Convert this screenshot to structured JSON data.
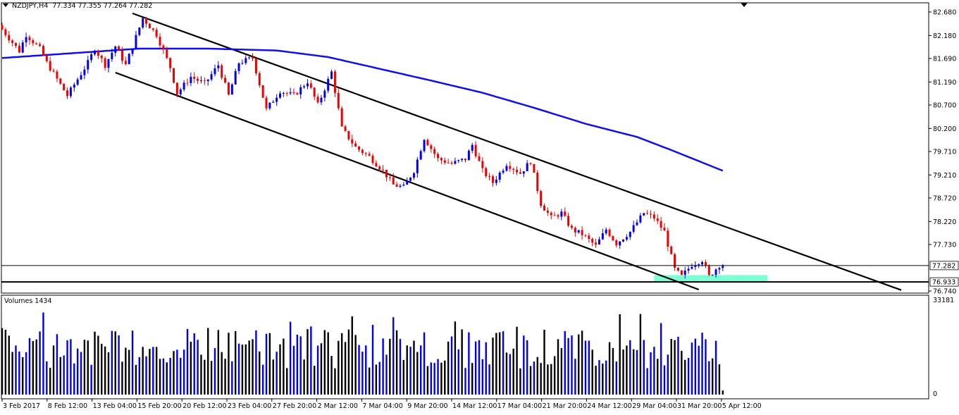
{
  "header": {
    "symbol": "NZDJPY,H4",
    "ohlc": "77.334 77.355 77.264 77.282"
  },
  "volumes_label": "Volumes 1434",
  "colors": {
    "bull": "#0000ee",
    "bear": "#ee0000",
    "ma": "#1010ee",
    "channel": "#000000",
    "support_zone": "#7fffd4",
    "volume_up": "#0000ee",
    "volume_down": "#000000"
  },
  "chart_data": {
    "type": "candlestick",
    "price_axis": {
      "ticks": [
        "82.680",
        "82.180",
        "81.690",
        "81.190",
        "80.700",
        "80.200",
        "79.710",
        "79.210",
        "78.720",
        "78.220",
        "77.730",
        "76.740"
      ],
      "ylim": [
        76.74,
        82.68
      ],
      "current_price": "77.282",
      "level_price": "76.933"
    },
    "volume_axis": {
      "ticks": [
        "33181",
        "0"
      ],
      "ylim": [
        0,
        33181
      ]
    },
    "x_ticks": [
      "3 Feb 2017",
      "8 Feb 12:00",
      "13 Feb 04:00",
      "15 Feb 20:00",
      "20 Feb 12:00",
      "23 Feb 04:00",
      "27 Feb 20:00",
      "2 Mar 12:00",
      "7 Mar 04:00",
      "9 Mar 20:00",
      "14 Mar 12:00",
      "17 Mar 04:00",
      "21 Mar 20:00",
      "24 Mar 12:00",
      "29 Mar 04:00",
      "31 Mar 20:00",
      "5 Apr 12:00"
    ],
    "price_path": [
      [
        0,
        82.4
      ],
      [
        6,
        81.85
      ],
      [
        8,
        82.2
      ],
      [
        12,
        81.9
      ],
      [
        14,
        81.6
      ],
      [
        20,
        80.9
      ],
      [
        26,
        81.6
      ],
      [
        28,
        81.9
      ],
      [
        31,
        81.55
      ],
      [
        34,
        81.95
      ],
      [
        37,
        81.55
      ],
      [
        42,
        82.55
      ],
      [
        46,
        82.2
      ],
      [
        50,
        81.5
      ],
      [
        52,
        80.95
      ],
      [
        56,
        81.3
      ],
      [
        60,
        81.15
      ],
      [
        64,
        81.55
      ],
      [
        67,
        80.9
      ],
      [
        70,
        81.6
      ],
      [
        74,
        81.7
      ],
      [
        78,
        80.6
      ],
      [
        82,
        81.0
      ],
      [
        86,
        80.9
      ],
      [
        90,
        81.2
      ],
      [
        93,
        80.7
      ],
      [
        97,
        81.4
      ],
      [
        100,
        80.2
      ],
      [
        104,
        79.8
      ],
      [
        108,
        79.6
      ],
      [
        112,
        79.3
      ],
      [
        115,
        79.0
      ],
      [
        118,
        78.95
      ],
      [
        121,
        79.3
      ],
      [
        124,
        80.0
      ],
      [
        128,
        79.55
      ],
      [
        132,
        79.45
      ],
      [
        136,
        79.55
      ],
      [
        138,
        79.85
      ],
      [
        141,
        79.3
      ],
      [
        144,
        79.05
      ],
      [
        148,
        79.45
      ],
      [
        152,
        79.25
      ],
      [
        155,
        79.5
      ],
      [
        158,
        78.6
      ],
      [
        161,
        78.3
      ],
      [
        164,
        78.4
      ],
      [
        167,
        78.05
      ],
      [
        170,
        77.95
      ],
      [
        174,
        77.7
      ],
      [
        177,
        78.05
      ],
      [
        180,
        77.75
      ],
      [
        184,
        78.0
      ],
      [
        188,
        78.4
      ],
      [
        191,
        78.3
      ],
      [
        194,
        78.0
      ],
      [
        197,
        77.2
      ],
      [
        199,
        77.05
      ],
      [
        202,
        77.3
      ],
      [
        205,
        77.4
      ],
      [
        207,
        77.05
      ],
      [
        210,
        77.29
      ]
    ],
    "moving_average": [
      [
        0,
        81.7
      ],
      [
        20,
        81.8
      ],
      [
        40,
        81.9
      ],
      [
        60,
        81.9
      ],
      [
        80,
        81.86
      ],
      [
        95,
        81.72
      ],
      [
        110,
        81.47
      ],
      [
        125,
        81.22
      ],
      [
        140,
        80.96
      ],
      [
        155,
        80.64
      ],
      [
        170,
        80.3
      ],
      [
        185,
        80.02
      ],
      [
        195,
        79.74
      ],
      [
        210,
        79.3
      ]
    ],
    "channel_lines": [
      {
        "from": [
          38,
          82.65
        ],
        "to": [
          262,
          76.76
        ]
      },
      {
        "from": [
          33,
          81.39
        ],
        "to": [
          203,
          76.77
        ]
      }
    ],
    "horizontal_levels": [
      "77.282",
      "76.933"
    ],
    "support_zone": {
      "from_bar": 190,
      "to_bar": 223,
      "low": 76.93,
      "high": 77.08
    },
    "x_range": [
      0,
      270
    ]
  }
}
